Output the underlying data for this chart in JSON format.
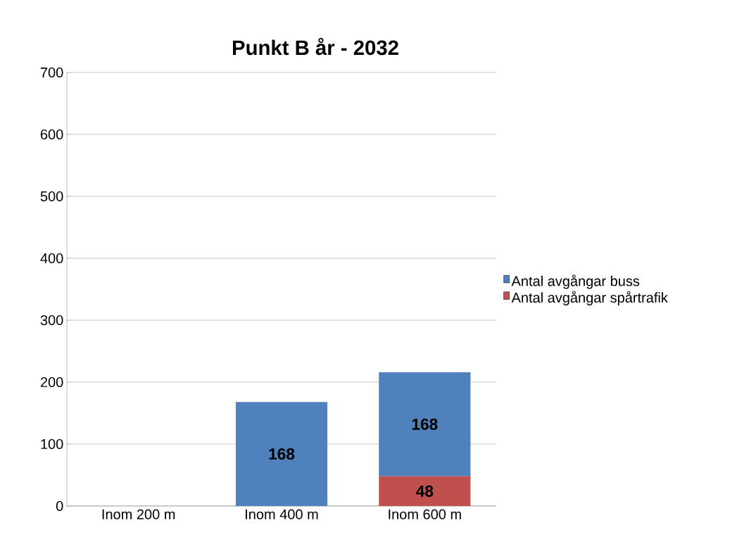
{
  "chart_data": {
    "type": "bar",
    "title": "Punkt B år - 2032",
    "categories": [
      "Inom 200 m",
      "Inom 400 m",
      "Inom 600 m"
    ],
    "stacked": true,
    "series": [
      {
        "name": "Antal avgångar spårtrafik",
        "color": "#c0504d",
        "values": [
          0,
          0,
          48
        ],
        "value_labels": [
          null,
          null,
          "48"
        ]
      },
      {
        "name": "Antal avgångar buss",
        "color": "#4f81bd",
        "values": [
          0,
          168,
          168
        ],
        "value_labels": [
          null,
          "168",
          "168"
        ]
      }
    ],
    "ylim": [
      0,
      700
    ],
    "yticks": [
      0,
      100,
      200,
      300,
      400,
      500,
      600,
      700
    ],
    "grid": "y",
    "legend": "right"
  }
}
